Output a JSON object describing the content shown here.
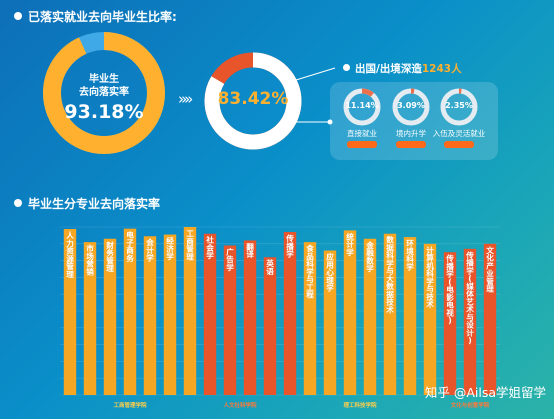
{
  "header": {
    "title": "已落实就业去向毕业生比率:"
  },
  "big_donut": {
    "label_line1": "毕业生",
    "label_line2": "去向落实率",
    "value": "93.18%",
    "percent": 93.18
  },
  "arrows": "»»",
  "mid_donut": {
    "value": "83.42%",
    "percent": 83.42
  },
  "abroad": {
    "title": "出国/出境深造",
    "count": "1243人"
  },
  "small_donuts": [
    {
      "value": "11.14%",
      "percent": 11.14,
      "label": "直接就业",
      "sub": ""
    },
    {
      "value": "3.09%",
      "percent": 3.09,
      "label": "境内升学",
      "sub": ""
    },
    {
      "value": "2.35%",
      "percent": 2.35,
      "label": "入伍及灵活就业",
      "sub": ""
    }
  ],
  "bar_section": {
    "title": "毕业生分专业去向落实率"
  },
  "watermark": "知乎 @Ailsa学姐留学",
  "colors": {
    "orange": "#ffb02e",
    "red_orange": "#e8552a",
    "ring_blue": "#3fa8e6",
    "ring_gold": "#f5a623"
  },
  "chart_data": {
    "type": "bar",
    "title": "毕业生分专业去向落实率",
    "xlabel": "",
    "ylabel": "",
    "ylim": [
      0,
      100
    ],
    "y_ticks": [
      "",
      "",
      "",
      "",
      "",
      "",
      "",
      "",
      "",
      "",
      ""
    ],
    "categories": [
      "人力资源管理",
      "市场营销",
      "财务管理",
      "电子商务",
      "会计学",
      "经济学",
      "工商管理",
      "社会学",
      "广告学",
      "翻译",
      "英语",
      "传播学",
      "食品科学与工程",
      "应用心理学",
      "统计学",
      "金融数学",
      "数据科学与大数据技术",
      "环境科学",
      "计算机科学与技术",
      "传播学(电影电视)",
      "传播学(媒体艺术与设计)",
      "文化产业管理"
    ],
    "values": [
      98.8,
      91.0,
      93.0,
      99.0,
      94.5,
      95.5,
      100.0,
      96.0,
      89.0,
      92.0,
      82.0,
      97.0,
      91.0,
      86.0,
      98.0,
      93.0,
      96.0,
      94.0,
      90.0,
      85.0,
      87.0,
      90.0
    ],
    "value_labels": [
      "",
      "",
      "",
      "",
      "",
      "",
      "",
      "",
      "",
      "",
      "",
      "",
      "",
      "",
      "",
      "",
      "",
      "",
      "",
      "",
      "",
      ""
    ],
    "groups": [
      {
        "name": "工商管理学院",
        "start": 0,
        "end": 6,
        "color": "#f5a623"
      },
      {
        "name": "人文社科学院",
        "start": 7,
        "end": 10,
        "color": "#e8552a"
      },
      {
        "name": "理工科技学院",
        "start": 11,
        "end": 18,
        "color": "#f5a623"
      },
      {
        "name": "文化与创意学院",
        "start": 19,
        "end": 21,
        "color": "#e8552a"
      }
    ],
    "special_bars": {
      "11": "#e8552a"
    },
    "grid": true
  }
}
